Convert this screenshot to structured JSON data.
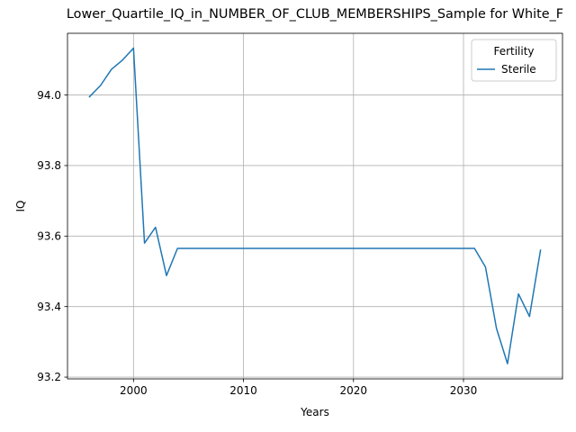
{
  "chart_data": {
    "type": "line",
    "title": "Lower_Quartile_IQ_in_NUMBER_OF_CLUB_MEMBERSHIPS_Sample for White_F",
    "xlabel": "Years",
    "ylabel": "IQ",
    "xlim": [
      1994,
      2039
    ],
    "ylim": [
      93.195,
      94.175
    ],
    "x_ticks": [
      2000,
      2010,
      2020,
      2030
    ],
    "y_ticks": [
      93.2,
      93.4,
      93.6,
      93.8,
      94.0
    ],
    "x_tick_labels": [
      "2000",
      "2010",
      "2020",
      "2030"
    ],
    "y_tick_labels": [
      "93.2",
      "93.4",
      "93.6",
      "93.8",
      "94.0"
    ],
    "grid": true,
    "legend": {
      "title": "Fertility",
      "placement": "top-right"
    },
    "series": [
      {
        "name": "Sterile",
        "color": "#1f77b4",
        "x": [
          1996,
          1997,
          1998,
          1999,
          2000,
          2001,
          2002,
          2003,
          2004,
          2005,
          2006,
          2007,
          2008,
          2009,
          2010,
          2011,
          2012,
          2013,
          2014,
          2015,
          2016,
          2017,
          2018,
          2019,
          2020,
          2021,
          2022,
          2023,
          2024,
          2025,
          2026,
          2027,
          2028,
          2029,
          2030,
          2031,
          2032,
          2033,
          2034,
          2035,
          2036,
          2037
        ],
        "y": [
          93.995,
          94.027,
          94.073,
          94.099,
          94.133,
          93.58,
          93.625,
          93.488,
          93.565,
          93.565,
          93.565,
          93.565,
          93.565,
          93.565,
          93.565,
          93.565,
          93.565,
          93.565,
          93.565,
          93.565,
          93.565,
          93.565,
          93.565,
          93.565,
          93.565,
          93.565,
          93.565,
          93.565,
          93.565,
          93.565,
          93.565,
          93.565,
          93.565,
          93.565,
          93.565,
          93.565,
          93.512,
          93.338,
          93.238,
          93.436,
          93.372,
          93.56
        ]
      }
    ]
  }
}
